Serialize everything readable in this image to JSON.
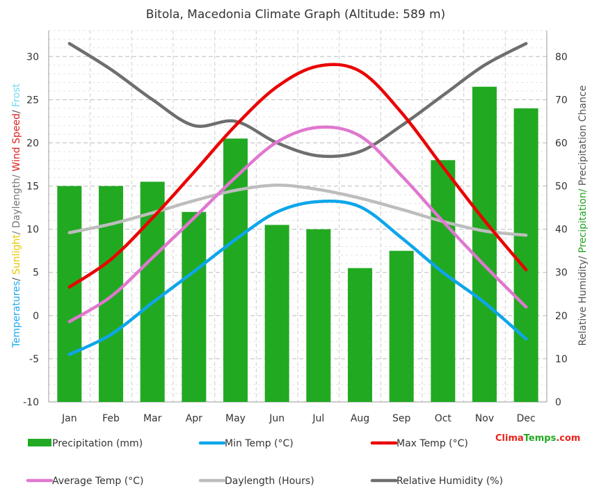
{
  "chart_data": {
    "type": "bar",
    "title": "Bitola, Macedonia Climate Graph (Altitude: 589 m)",
    "categories": [
      "Jan",
      "Feb",
      "Mar",
      "Apr",
      "May",
      "Jun",
      "Jul",
      "Aug",
      "Sep",
      "Oct",
      "Nov",
      "Dec"
    ],
    "left_axis": {
      "range": [
        -10,
        33
      ],
      "ticks": [
        -10,
        -5,
        0,
        5,
        10,
        15,
        20,
        25,
        30
      ],
      "title_parts": [
        {
          "text": "Temperatures",
          "color": "#1eaaf1"
        },
        {
          "text": "/ ",
          "color": "#555555"
        },
        {
          "text": "Sunlight",
          "color": "#e8c800"
        },
        {
          "text": "/ Daylength/ ",
          "color": "#777777"
        },
        {
          "text": "Wind Speed",
          "color": "#e02020"
        },
        {
          "text": "/ ",
          "color": "#555555"
        },
        {
          "text": "Frost",
          "color": "#6fd8f0"
        }
      ]
    },
    "right_axis": {
      "range": [
        0,
        86
      ],
      "ticks": [
        0,
        10,
        20,
        30,
        40,
        50,
        60,
        70,
        80
      ],
      "title_parts": [
        {
          "text": "Relative Humidity/ ",
          "color": "#555555"
        },
        {
          "text": "Precipitation/ ",
          "color": "#22a122"
        },
        {
          "text": "Precipitation Chance",
          "color": "#555555"
        }
      ]
    },
    "series": [
      {
        "name": "Precipitation (mm)",
        "kind": "bar",
        "axis": "right",
        "color": "#22a922",
        "values": [
          50,
          50,
          51,
          44,
          61,
          41,
          40,
          31,
          35,
          56,
          73,
          68
        ]
      },
      {
        "name": "Min Temp (°C)",
        "kind": "line",
        "axis": "left",
        "color": "#0da6ea",
        "values": [
          -4.5,
          -2.2,
          1.5,
          5.1,
          8.8,
          12.0,
          13.2,
          12.6,
          9.0,
          5.0,
          1.5,
          -2.7
        ]
      },
      {
        "name": "Max Temp (°C)",
        "kind": "line",
        "axis": "left",
        "color": "#ea0000",
        "values": [
          3.3,
          6.5,
          11.3,
          16.6,
          22.0,
          26.5,
          28.9,
          28.3,
          23.5,
          17.2,
          11.0,
          5.3
        ]
      },
      {
        "name": "Average Temp (°C)",
        "kind": "line",
        "axis": "left",
        "color": "#e077d0",
        "values": [
          -0.7,
          2.2,
          6.7,
          11.3,
          16.0,
          20.1,
          21.8,
          20.8,
          16.2,
          10.9,
          5.8,
          1.0
        ]
      },
      {
        "name": "Daylength (Hours)",
        "kind": "line",
        "axis": "left",
        "color": "#bdbdbd",
        "values": [
          9.6,
          10.6,
          11.9,
          13.3,
          14.5,
          15.1,
          14.6,
          13.6,
          12.3,
          10.9,
          9.8,
          9.3
        ]
      },
      {
        "name": "Relative Humidity (%)",
        "kind": "line",
        "axis": "right",
        "color": "#6e6e6e",
        "values": [
          83,
          77,
          70,
          64,
          65,
          60,
          57,
          58,
          64,
          71,
          78,
          83
        ]
      }
    ],
    "brand": {
      "prefix": "Clima",
      "suffix": "Temps",
      "tld": ".com",
      "color1": "#e8231e",
      "color2": "#22a922"
    }
  }
}
